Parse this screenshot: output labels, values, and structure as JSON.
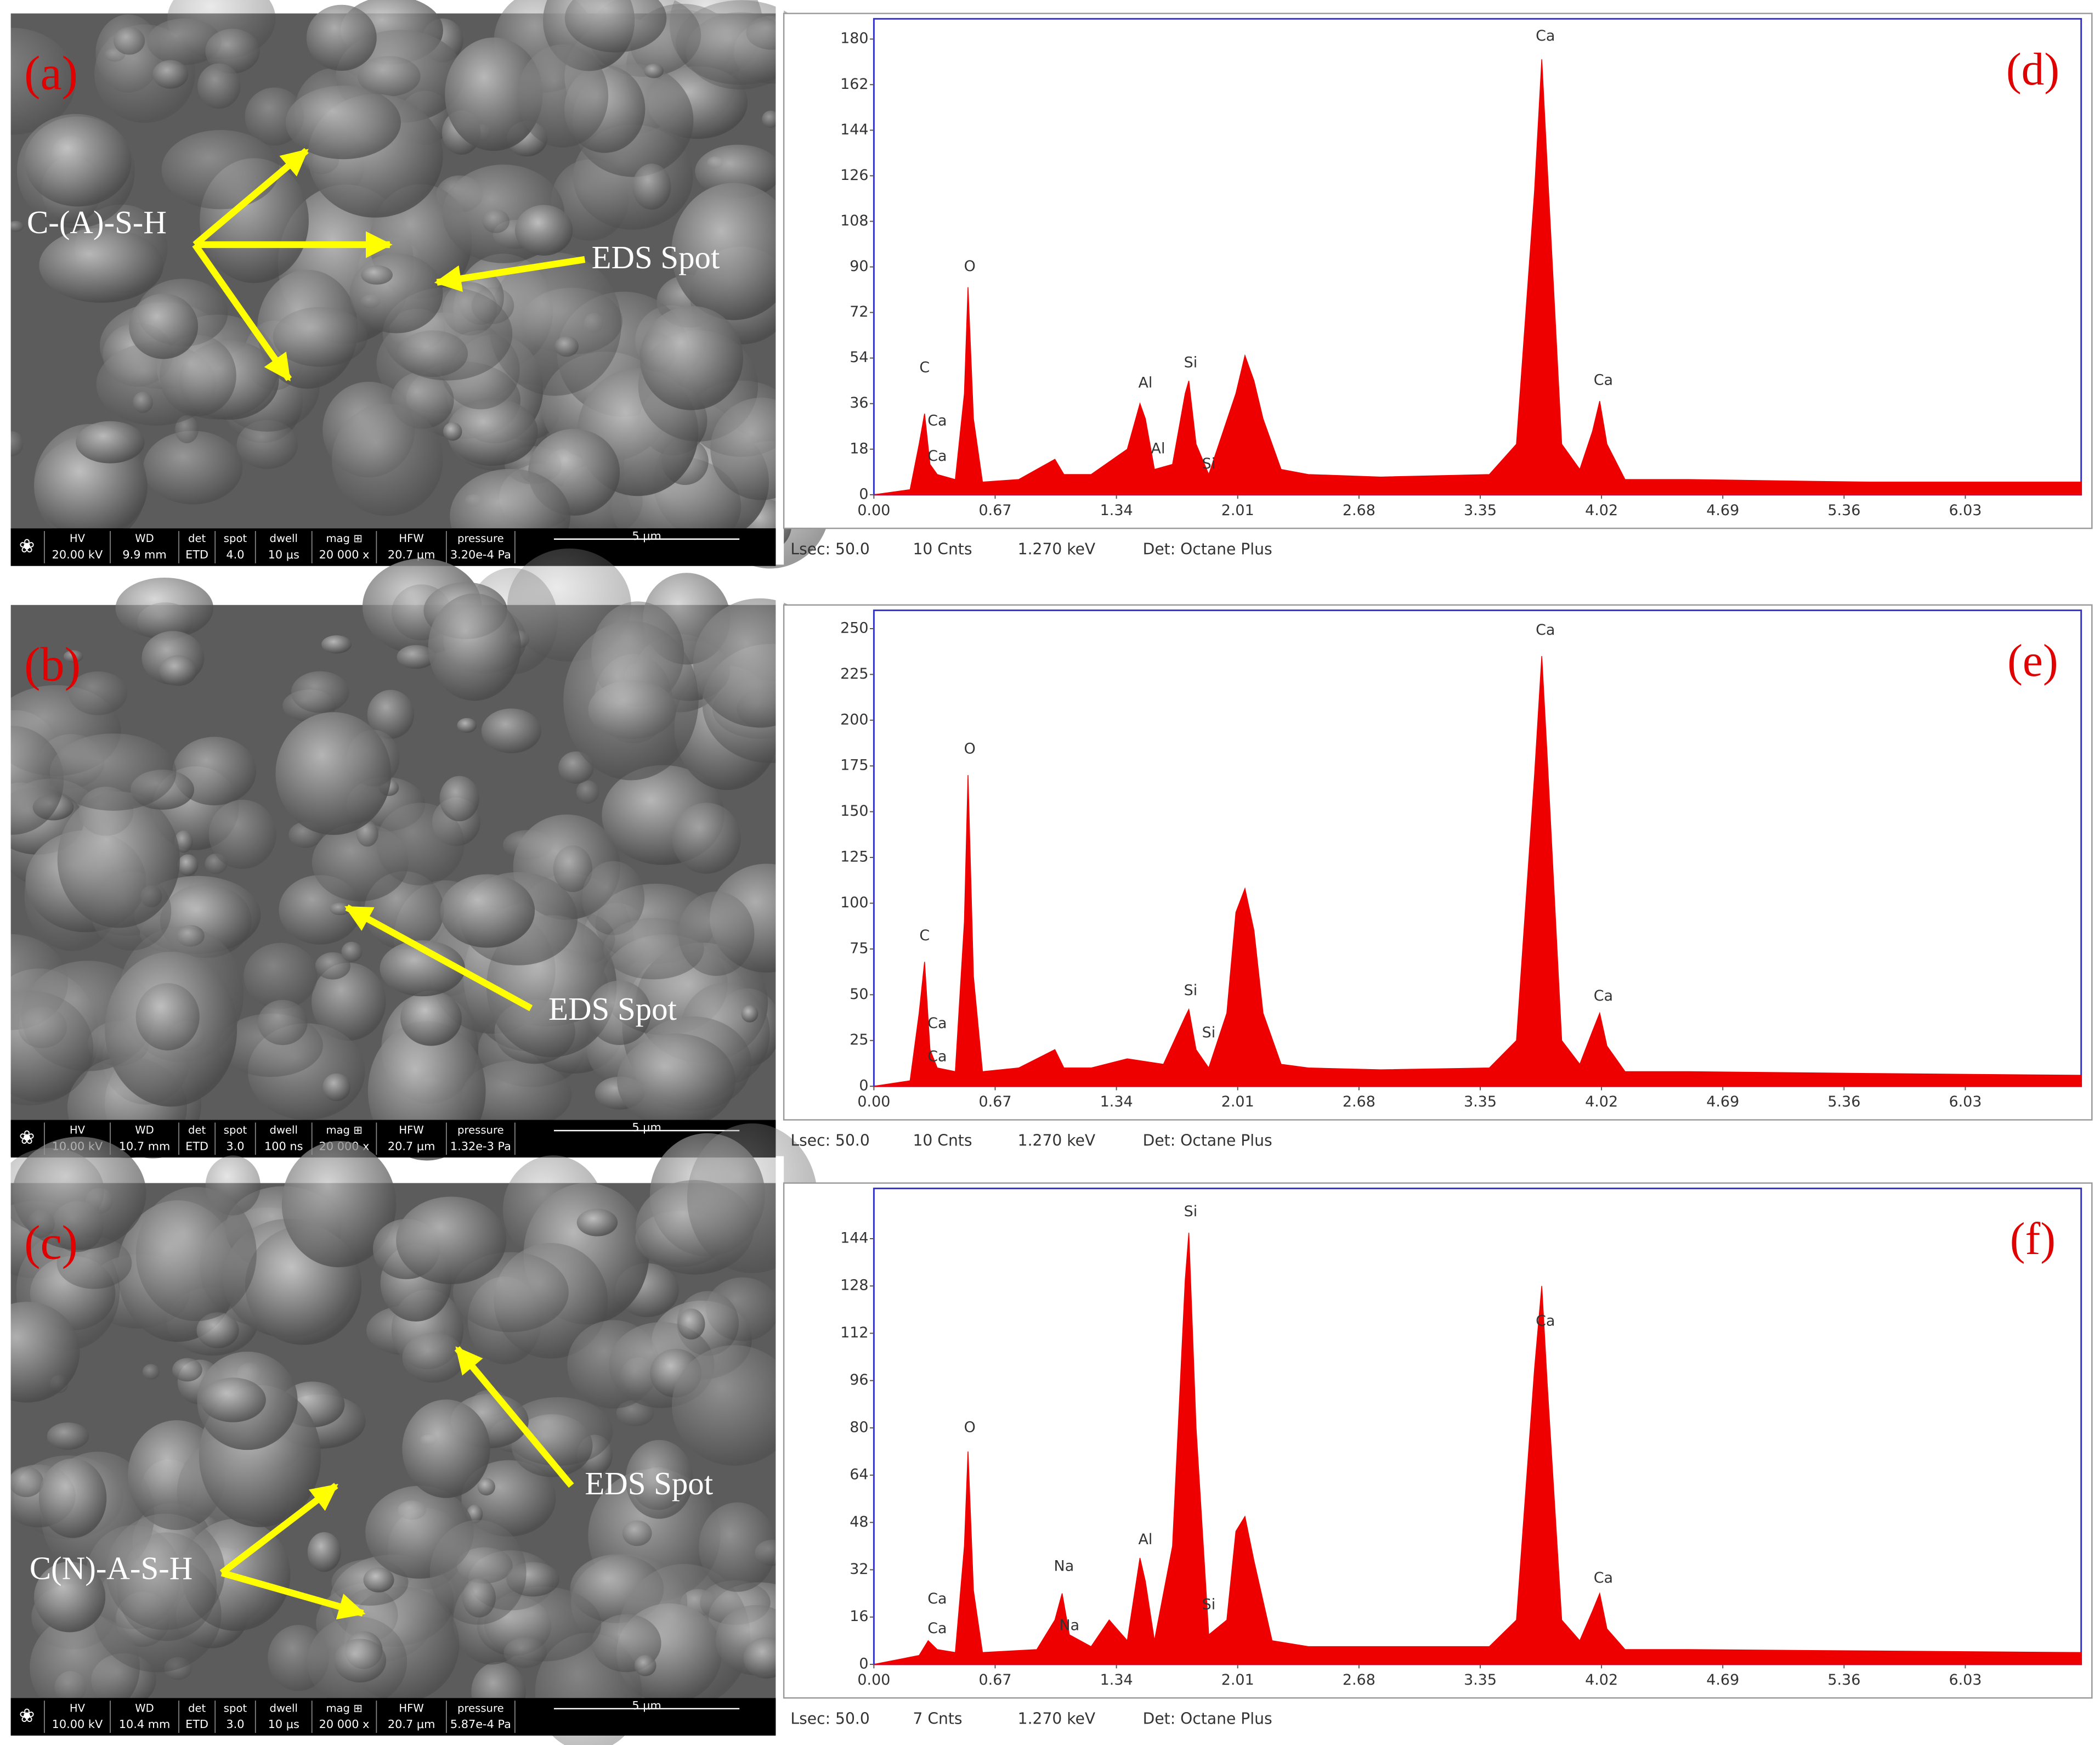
{
  "chart_data": [
    {
      "type": "area",
      "panel_label": "(d)",
      "x": [
        0,
        0.2,
        0.25,
        0.28,
        0.31,
        0.35,
        0.45,
        0.5,
        0.52,
        0.55,
        0.6,
        0.8,
        1.0,
        1.05,
        1.2,
        1.4,
        1.47,
        1.5,
        1.55,
        1.65,
        1.72,
        1.74,
        1.78,
        1.85,
        2.0,
        2.05,
        2.1,
        2.15,
        2.25,
        2.4,
        2.8,
        3.4,
        3.55,
        3.65,
        3.69,
        3.72,
        3.8,
        3.9,
        3.97,
        4.01,
        4.05,
        4.15,
        4.5,
        5.5,
        6.67
      ],
      "values": [
        0,
        2,
        20,
        32,
        12,
        8,
        6,
        40,
        82,
        30,
        5,
        6,
        14,
        8,
        8,
        18,
        36,
        30,
        10,
        12,
        40,
        45,
        20,
        8,
        40,
        55,
        45,
        30,
        10,
        8,
        7,
        8,
        20,
        120,
        172,
        130,
        20,
        10,
        25,
        37,
        20,
        6,
        6,
        5,
        5
      ],
      "color": "#ee0000",
      "xlim": [
        0,
        6.67
      ],
      "ylim": [
        0,
        188
      ],
      "xticks": [
        {
          "value": 0,
          "label": "0.00"
        },
        0.67,
        1.34,
        2.01,
        2.68,
        3.35,
        4.02,
        4.69,
        5.36,
        6.03
      ],
      "yticks": [
        0,
        18,
        36,
        54,
        72,
        90,
        108,
        126,
        144,
        162,
        180
      ],
      "peak_labels": [
        {
          "text": "C",
          "x": 0.28,
          "y": 50
        },
        {
          "text": "Ca",
          "x": 0.35,
          "y": 29
        },
        {
          "text": "Ca",
          "x": 0.35,
          "y": 15
        },
        {
          "text": "O",
          "x": 0.53,
          "y": 90
        },
        {
          "text": "Al",
          "x": 1.5,
          "y": 44
        },
        {
          "text": "Al",
          "x": 1.57,
          "y": 18
        },
        {
          "text": "Si",
          "x": 1.75,
          "y": 52
        },
        {
          "text": "Si",
          "x": 1.85,
          "y": 12
        },
        {
          "text": "Ca",
          "x": 3.71,
          "y": 181
        },
        {
          "text": "Ca",
          "x": 4.03,
          "y": 45
        }
      ],
      "footer": [
        "Lsec: 50.0",
        "10 Cnts",
        "1.270 keV",
        "Det: Octane Plus"
      ]
    },
    {
      "type": "area",
      "panel_label": "(e)",
      "x": [
        0,
        0.2,
        0.25,
        0.28,
        0.31,
        0.35,
        0.45,
        0.5,
        0.52,
        0.55,
        0.6,
        0.8,
        1.0,
        1.05,
        1.2,
        1.4,
        1.6,
        1.72,
        1.74,
        1.78,
        1.85,
        1.95,
        2.0,
        2.05,
        2.1,
        2.15,
        2.25,
        2.4,
        2.8,
        3.4,
        3.55,
        3.65,
        3.69,
        3.72,
        3.8,
        3.9,
        3.97,
        4.01,
        4.05,
        4.15,
        4.5,
        5.5,
        6.67
      ],
      "values": [
        0,
        3,
        40,
        68,
        20,
        10,
        8,
        90,
        170,
        60,
        8,
        10,
        20,
        10,
        10,
        15,
        12,
        38,
        42,
        20,
        10,
        40,
        95,
        108,
        85,
        40,
        12,
        10,
        9,
        10,
        25,
        170,
        235,
        180,
        25,
        12,
        30,
        40,
        22,
        8,
        8,
        7,
        6
      ],
      "color": "#ee0000",
      "xlim": [
        0,
        6.67
      ],
      "ylim": [
        0,
        260
      ],
      "xticks": [
        {
          "value": 0,
          "label": "0.00"
        },
        0.67,
        1.34,
        2.01,
        2.68,
        3.35,
        4.02,
        4.69,
        5.36,
        6.03
      ],
      "yticks": [
        0,
        25,
        50,
        75,
        100,
        125,
        150,
        175,
        200,
        225,
        250
      ],
      "peak_labels": [
        {
          "text": "C",
          "x": 0.28,
          "y": 82
        },
        {
          "text": "Ca",
          "x": 0.35,
          "y": 34
        },
        {
          "text": "Ca",
          "x": 0.35,
          "y": 16
        },
        {
          "text": "O",
          "x": 0.53,
          "y": 184
        },
        {
          "text": "Si",
          "x": 1.75,
          "y": 52
        },
        {
          "text": "Si",
          "x": 1.85,
          "y": 29
        },
        {
          "text": "Ca",
          "x": 3.71,
          "y": 249
        },
        {
          "text": "Ca",
          "x": 4.03,
          "y": 49
        }
      ],
      "footer": [
        "Lsec: 50.0",
        "10 Cnts",
        "1.270 keV",
        "Det: Octane Plus"
      ]
    },
    {
      "type": "area",
      "panel_label": "(f)",
      "x": [
        0,
        0.25,
        0.3,
        0.35,
        0.45,
        0.5,
        0.52,
        0.55,
        0.6,
        0.9,
        1.0,
        1.04,
        1.08,
        1.2,
        1.3,
        1.4,
        1.47,
        1.5,
        1.55,
        1.65,
        1.72,
        1.74,
        1.78,
        1.85,
        1.95,
        2.0,
        2.05,
        2.1,
        2.2,
        2.4,
        3.4,
        3.55,
        3.65,
        3.69,
        3.72,
        3.8,
        3.9,
        3.97,
        4.01,
        4.05,
        4.15,
        4.5,
        6.67
      ],
      "values": [
        0,
        3,
        8,
        5,
        4,
        40,
        72,
        25,
        4,
        5,
        15,
        24,
        10,
        6,
        15,
        8,
        36,
        28,
        8,
        40,
        130,
        146,
        80,
        10,
        15,
        45,
        50,
        35,
        8,
        6,
        6,
        15,
        100,
        128,
        95,
        15,
        8,
        18,
        24,
        12,
        5,
        5,
        4
      ],
      "color": "#ee0000",
      "xlim": [
        0,
        6.67
      ],
      "ylim": [
        0,
        161
      ],
      "xticks": [
        {
          "value": 0,
          "label": "0.00"
        },
        0.67,
        1.34,
        2.01,
        2.68,
        3.35,
        4.02,
        4.69,
        5.36,
        6.03
      ],
      "yticks": [
        0,
        16,
        32,
        48,
        64,
        80,
        96,
        112,
        128,
        144
      ],
      "peak_labels": [
        {
          "text": "O",
          "x": 0.53,
          "y": 80
        },
        {
          "text": "Ca",
          "x": 0.35,
          "y": 22
        },
        {
          "text": "Ca",
          "x": 0.35,
          "y": 12
        },
        {
          "text": "Na",
          "x": 1.05,
          "y": 33
        },
        {
          "text": "Na",
          "x": 1.08,
          "y": 13
        },
        {
          "text": "Al",
          "x": 1.5,
          "y": 42
        },
        {
          "text": "Si",
          "x": 1.75,
          "y": 153
        },
        {
          "text": "Si",
          "x": 1.85,
          "y": 20
        },
        {
          "text": "Ca",
          "x": 3.71,
          "y": 116
        },
        {
          "text": "Ca",
          "x": 4.03,
          "y": 29
        }
      ],
      "footer": [
        "Lsec: 50.0",
        "7 Cnts",
        "1.270 keV",
        "Det: Octane Plus"
      ]
    }
  ],
  "sem_panels": [
    {
      "label": "(a)",
      "annotations": [
        "C-(A)-S-H",
        "EDS Spot"
      ],
      "info_headers": [
        "HV",
        "WD",
        "det",
        "spot",
        "dwell",
        "mag ⊞",
        "HFW",
        "pressure"
      ],
      "info_values": [
        "20.00 kV",
        "9.9 mm",
        "ETD",
        "4.0",
        "10 μs",
        "20 000 x",
        "20.7 μm",
        "3.20e-4 Pa"
      ],
      "scale_bar": "5 μm"
    },
    {
      "label": "(b)",
      "annotations": [
        "EDS Spot"
      ],
      "info_headers": [
        "HV",
        "WD",
        "det",
        "spot",
        "dwell",
        "mag ⊞",
        "HFW",
        "pressure"
      ],
      "info_values": [
        "10.00 kV",
        "10.7 mm",
        "ETD",
        "3.0",
        "100 ns",
        "20 000 x",
        "20.7 μm",
        "1.32e-3 Pa"
      ],
      "scale_bar": "5 μm"
    },
    {
      "label": "(c)",
      "annotations": [
        "EDS Spot",
        "C(N)-A-S-H"
      ],
      "info_headers": [
        "HV",
        "WD",
        "det",
        "spot",
        "dwell",
        "mag ⊞",
        "HFW",
        "pressure"
      ],
      "info_values": [
        "10.00 kV",
        "10.4 mm",
        "ETD",
        "3.0",
        "10 μs",
        "20 000 x",
        "20.7 μm",
        "5.87e-4 Pa"
      ],
      "scale_bar": "5 μm"
    }
  ]
}
